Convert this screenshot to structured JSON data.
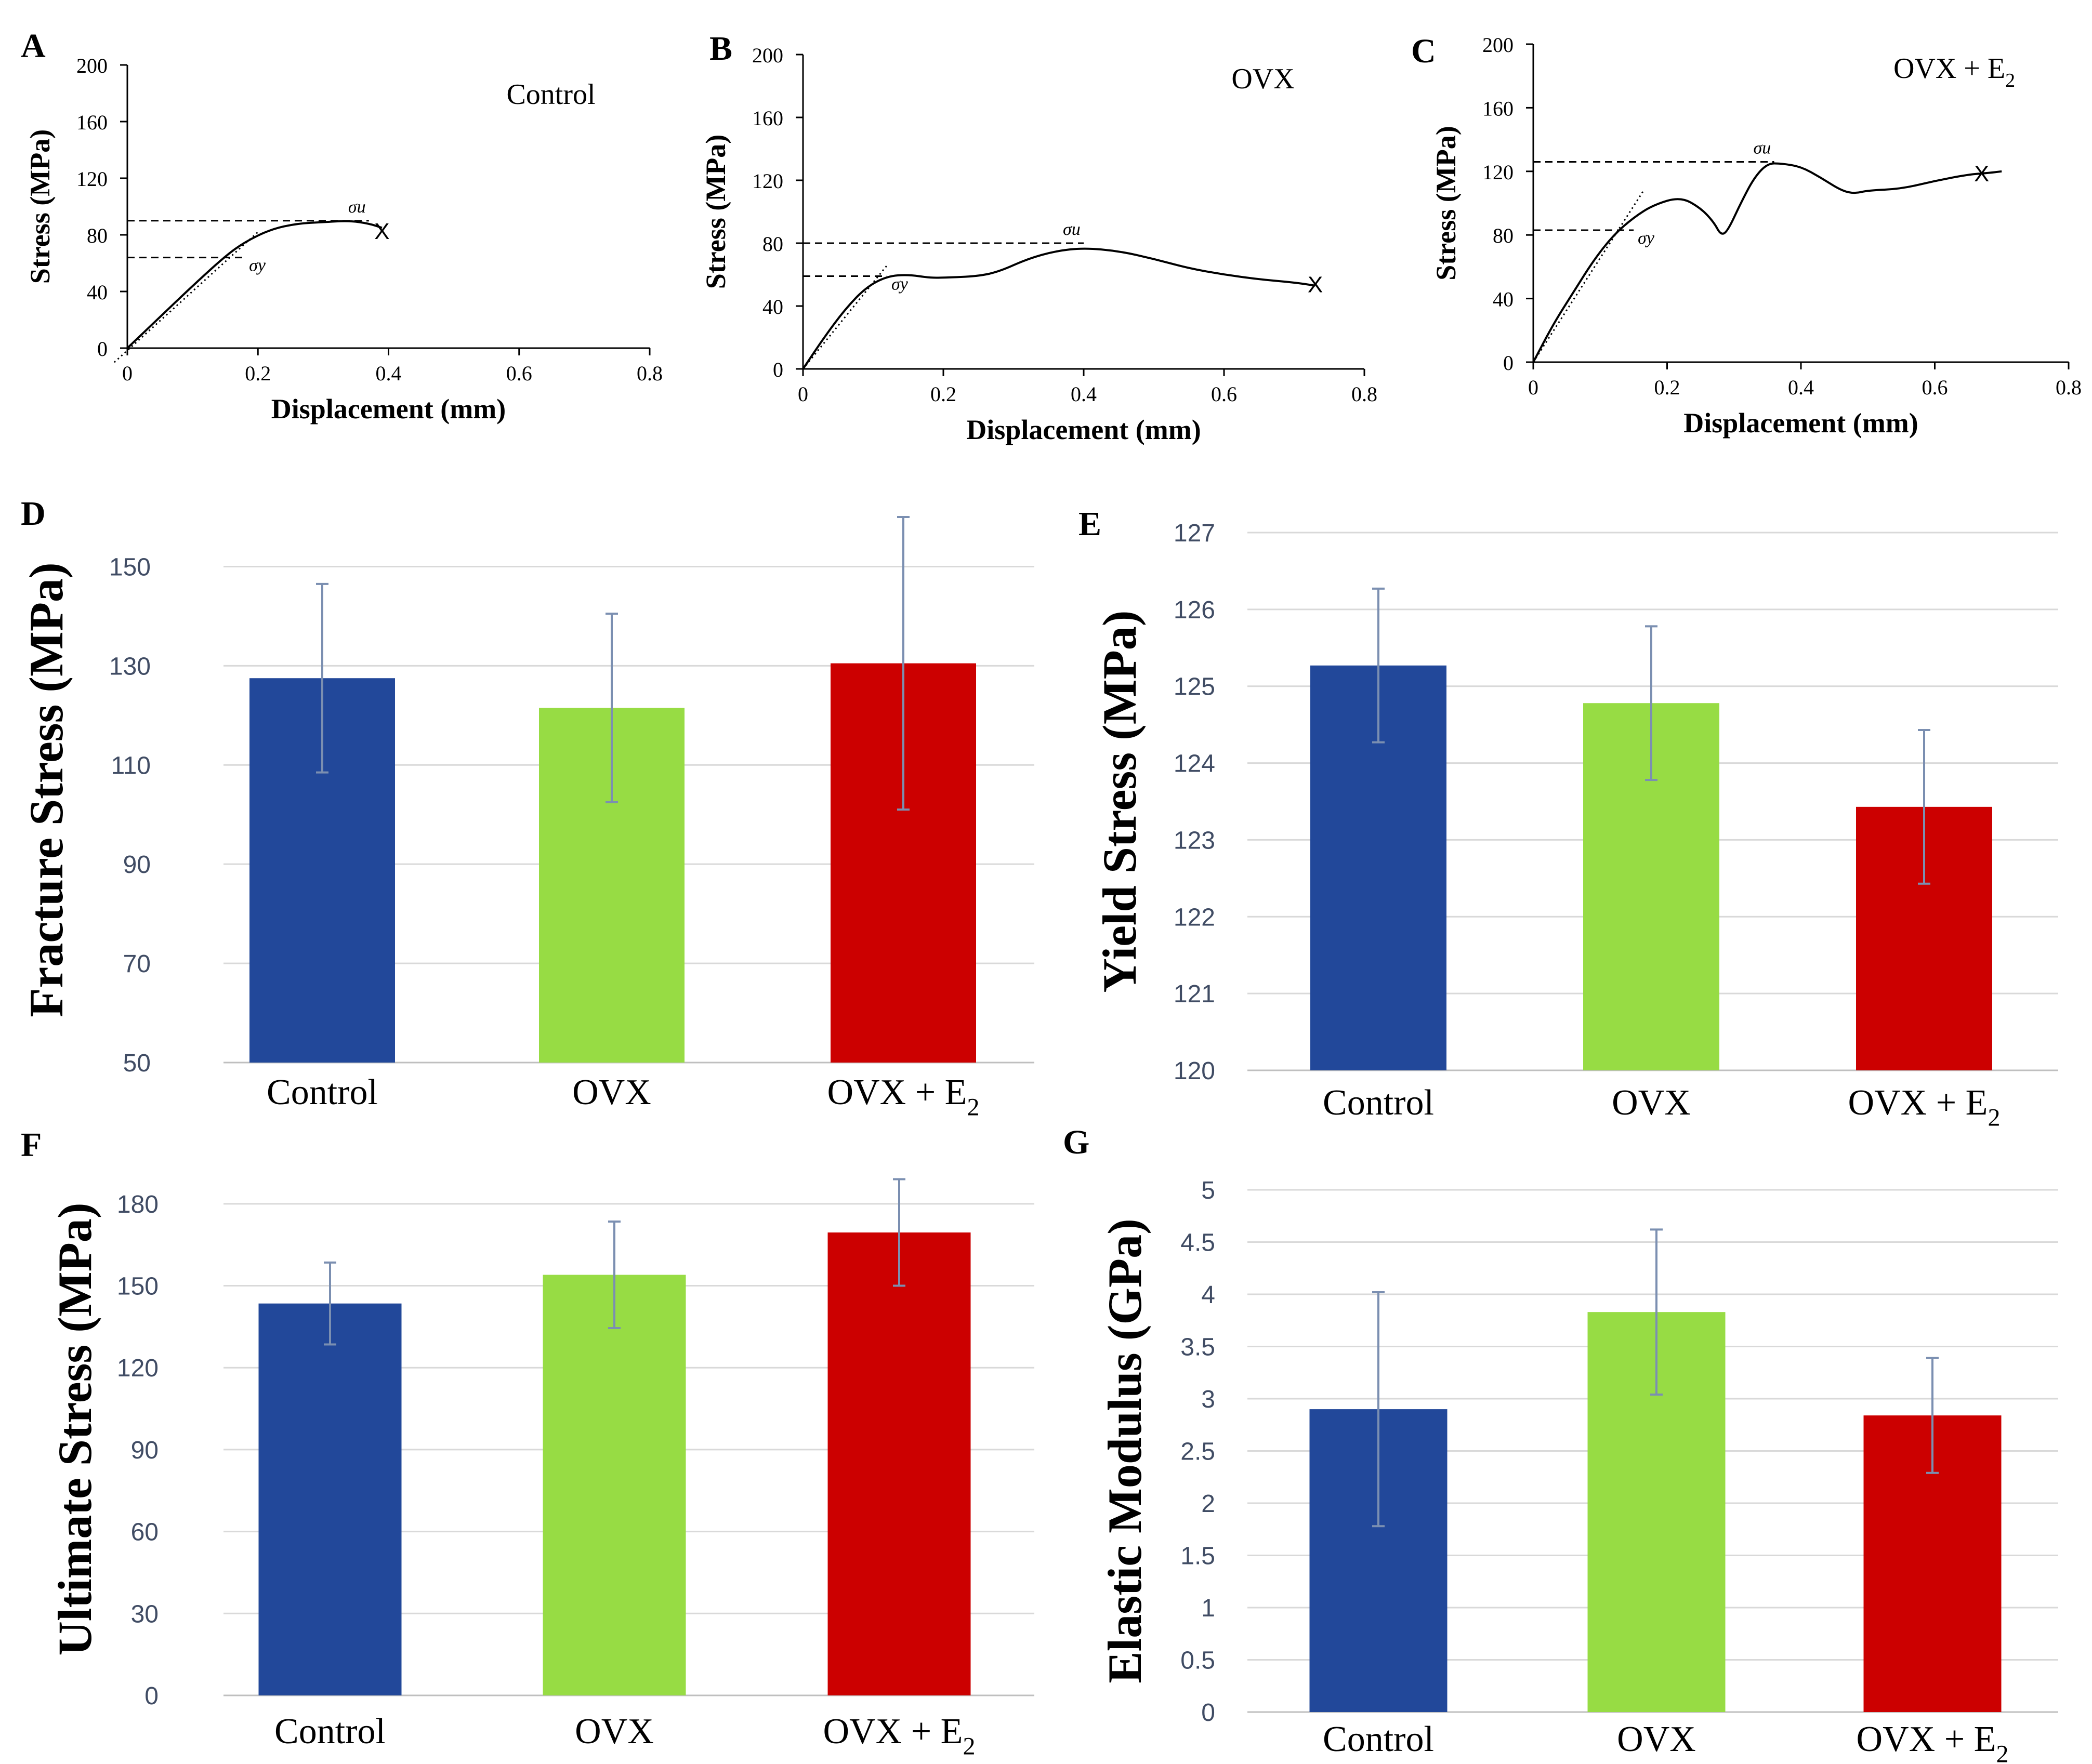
{
  "figure": {
    "panel_letters": [
      "A",
      "B",
      "C",
      "D",
      "E",
      "F",
      "G"
    ]
  },
  "chart_data": [
    {
      "panel": "A",
      "type": "line",
      "title": "Control",
      "xlabel": "Displacement (mm)",
      "ylabel": "Stress (MPa)",
      "xlim": [
        0,
        0.8
      ],
      "ylim": [
        0,
        200
      ],
      "xticks": [
        "0",
        "0.2",
        "0.4",
        "0.6",
        "0.8"
      ],
      "yticks": [
        "0",
        "40",
        "80",
        "120",
        "160",
        "200"
      ],
      "series": [
        {
          "name": "stress",
          "x": [
            0,
            0.05,
            0.1,
            0.15,
            0.18,
            0.22,
            0.26,
            0.3,
            0.34,
            0.37,
            0.39
          ],
          "y": [
            0,
            22,
            44,
            65,
            75,
            84,
            88,
            89,
            90,
            88,
            85
          ]
        }
      ],
      "elastic_fit": {
        "x": [
          -0.02,
          0.2
        ],
        "y": [
          -10,
          82
        ]
      },
      "sigma_u": {
        "label": "σu",
        "y": 90,
        "x_end": 0.37
      },
      "sigma_y": {
        "label": "σy",
        "y": 64,
        "x_end": 0.18
      },
      "fracture": {
        "label": "X",
        "x": 0.39,
        "y": 83
      }
    },
    {
      "panel": "B",
      "type": "line",
      "title": "OVX",
      "xlabel": "Displacement (mm)",
      "ylabel": "Stress (MPa)",
      "xlim": [
        0,
        0.8
      ],
      "ylim": [
        0,
        200
      ],
      "xticks": [
        "0",
        "0.2",
        "0.4",
        "0.6",
        "0.8"
      ],
      "yticks": [
        "0",
        "40",
        "80",
        "120",
        "160",
        "200"
      ],
      "series": [
        {
          "name": "stress",
          "x": [
            0,
            0.03,
            0.06,
            0.09,
            0.12,
            0.15,
            0.18,
            0.2,
            0.25,
            0.28,
            0.32,
            0.36,
            0.4,
            0.45,
            0.5,
            0.55,
            0.6,
            0.65,
            0.7,
            0.73
          ],
          "y": [
            0,
            20,
            38,
            52,
            59,
            60,
            58,
            58,
            59,
            62,
            70,
            75,
            77,
            75,
            70,
            64,
            60,
            57,
            55,
            53
          ]
        }
      ],
      "elastic_fit": {
        "x": [
          0,
          0.12
        ],
        "y": [
          0,
          66
        ]
      },
      "sigma_u": {
        "label": "σu",
        "y": 80,
        "x_end": 0.4
      },
      "sigma_y": {
        "label": "σy",
        "y": 59,
        "x_end": 0.12
      },
      "fracture": {
        "label": "X",
        "x": 0.73,
        "y": 54
      }
    },
    {
      "panel": "C",
      "type": "line",
      "title": "OVX + E",
      "title_subscript": "2",
      "xlabel": "Displacement (mm)",
      "ylabel": "Stress (MPa)",
      "xlim": [
        0,
        0.8
      ],
      "ylim": [
        0,
        200
      ],
      "xticks": [
        "0",
        "0.2",
        "0.4",
        "0.6",
        "0.8"
      ],
      "yticks": [
        "0",
        "40",
        "80",
        "120",
        "160",
        "200"
      ],
      "series": [
        {
          "name": "stress",
          "x": [
            0,
            0.03,
            0.06,
            0.09,
            0.12,
            0.15,
            0.18,
            0.22,
            0.25,
            0.27,
            0.28,
            0.29,
            0.31,
            0.33,
            0.35,
            0.37,
            0.4,
            0.43,
            0.46,
            0.48,
            0.5,
            0.55,
            0.6,
            0.65,
            0.68,
            0.7
          ],
          "y": [
            0,
            24,
            44,
            64,
            80,
            91,
            99,
            104,
            97,
            88,
            80,
            82,
            100,
            116,
            125,
            125,
            123,
            116,
            108,
            106,
            108,
            109,
            114,
            118,
            119,
            120
          ]
        }
      ],
      "elastic_fit": {
        "x": [
          0,
          0.165
        ],
        "y": [
          0,
          108
        ]
      },
      "sigma_u": {
        "label": "σu",
        "y": 126,
        "x_end": 0.36
      },
      "sigma_y": {
        "label": "σy",
        "y": 83,
        "x_end": 0.15
      },
      "fracture": {
        "label": "X",
        "x": 0.67,
        "y": 119
      }
    },
    {
      "panel": "D",
      "type": "bar",
      "categories": [
        "Control",
        "OVX",
        "OVX + E"
      ],
      "category_subscripts": [
        "",
        "",
        "2"
      ],
      "values": [
        127.5,
        121.5,
        130.5
      ],
      "errors": [
        19,
        19,
        29.5
      ],
      "colors": [
        "#22489a",
        "#97dc44",
        "#cc0000"
      ],
      "ylabel": "Fracture Stress (MPa)",
      "ylim": [
        50,
        160
      ],
      "yticks": [
        "50",
        "70",
        "90",
        "110",
        "130",
        "150"
      ],
      "grid": true
    },
    {
      "panel": "E",
      "type": "bar",
      "categories": [
        "Control",
        "OVX",
        "OVX + E"
      ],
      "category_subscripts": [
        "",
        "",
        "2"
      ],
      "values": [
        125.27,
        124.78,
        123.43
      ],
      "errors": [
        1.0,
        1.0,
        1.0
      ],
      "colors": [
        "#22489a",
        "#97dc44",
        "#cc0000"
      ],
      "ylabel": "Yield Stress (MPa)",
      "ylim": [
        120,
        127
      ],
      "yticks": [
        "120",
        "121",
        "122",
        "123",
        "124",
        "125",
        "126",
        "127"
      ],
      "grid": true
    },
    {
      "panel": "F",
      "type": "bar",
      "categories": [
        "Control",
        "OVX",
        "OVX + E"
      ],
      "category_subscripts": [
        "",
        "",
        "2"
      ],
      "values": [
        143.5,
        154,
        169.5
      ],
      "errors": [
        15,
        19.5,
        19.5
      ],
      "colors": [
        "#22489a",
        "#97dc44",
        "#cc0000"
      ],
      "ylabel": "Ultimate Stress (MPa)",
      "ylim": [
        0,
        195
      ],
      "yticks": [
        "0",
        "30",
        "60",
        "90",
        "120",
        "150",
        "180"
      ],
      "grid": true
    },
    {
      "panel": "G",
      "type": "bar",
      "categories": [
        "Control",
        "OVX",
        "OVX + E"
      ],
      "category_subscripts": [
        "",
        "",
        "2"
      ],
      "values": [
        2.9,
        3.83,
        2.84
      ],
      "errors": [
        1.12,
        0.79,
        0.55
      ],
      "colors": [
        "#22489a",
        "#97dc44",
        "#cc0000"
      ],
      "ylabel": "Elastic Modulus (GPa)",
      "ylim": [
        0,
        5
      ],
      "yticks": [
        "0",
        "0.5",
        "1",
        "1.5",
        "2",
        "2.5",
        "3",
        "3.5",
        "4",
        "4.5",
        "5"
      ],
      "grid": true
    }
  ]
}
